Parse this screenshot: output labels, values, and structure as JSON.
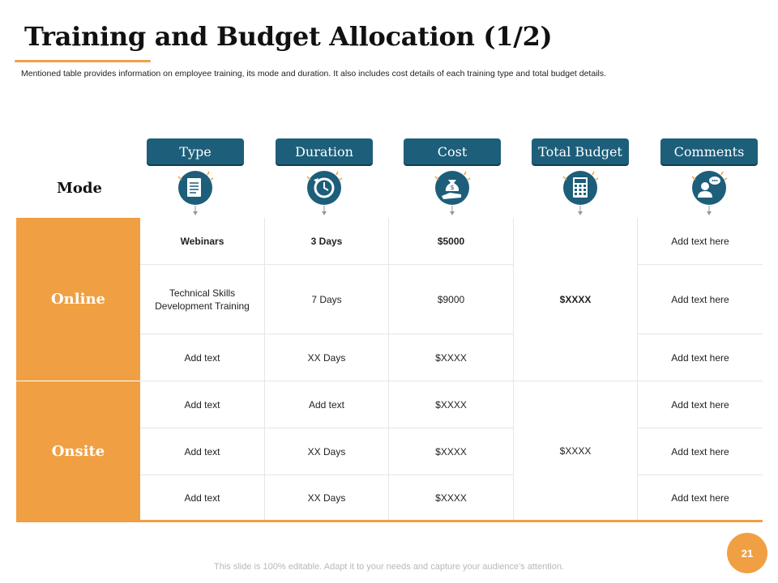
{
  "header": {
    "title": "Training and Budget Allocation (1/2)",
    "subtitle": "Mentioned table provides information on employee training, its mode and duration. It also includes cost details of each training type and total budget details."
  },
  "table": {
    "mode_label": "Mode",
    "columns": [
      {
        "label": "Type",
        "icon": "document-icon"
      },
      {
        "label": "Duration",
        "icon": "clock-refresh-icon"
      },
      {
        "label": "Cost",
        "icon": "money-bag-hand-icon"
      },
      {
        "label": "Total Budget",
        "icon": "calculator-icon"
      },
      {
        "label": "Comments",
        "icon": "user-chat-icon"
      }
    ],
    "groups": [
      {
        "name": "Online",
        "total_budget": "$XXXX",
        "rows": [
          {
            "type": "Webinars",
            "duration": "3 Days",
            "cost": "$5000",
            "comment": "Add text here"
          },
          {
            "type": "Technical Skills Development  Training",
            "duration": "7 Days",
            "cost": "$9000",
            "comment": "Add text here"
          },
          {
            "type": "Add text",
            "duration": "XX  Days",
            "cost": "$XXXX",
            "comment": "Add text here"
          }
        ]
      },
      {
        "name": "Onsite",
        "total_budget": "$XXXX",
        "rows": [
          {
            "type": "Add text",
            "duration": "Add text",
            "cost": "$XXXX",
            "comment": "Add text here"
          },
          {
            "type": "Add text",
            "duration": "XX  Days",
            "cost": "$XXXX",
            "comment": "Add text here"
          },
          {
            "type": "Add text",
            "duration": "XX  Days",
            "cost": "$XXXX",
            "comment": "Add text here"
          }
        ]
      }
    ]
  },
  "footer": {
    "note": "This slide is 100% editable. Adapt it to your needs and capture your audience's attention.",
    "page_number": "21"
  },
  "colors": {
    "accent": "#f0a042",
    "header_blue": "#1d5e7a"
  }
}
